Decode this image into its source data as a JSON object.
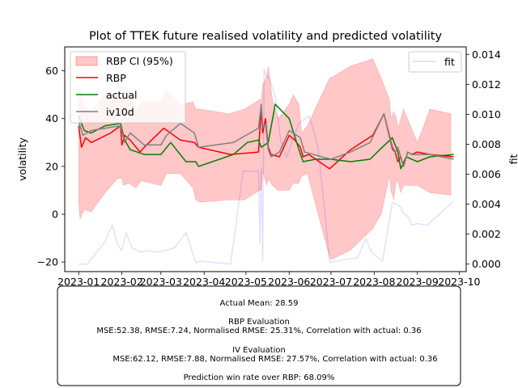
{
  "chart_data": {
    "type": "line",
    "title": "Plot of TTEK future realised volatility and predicted volatility",
    "ylabel": "volatility",
    "y2label": "fit",
    "ylim": [
      -24,
      70
    ],
    "y2lim": [
      -0.0005,
      0.0145
    ],
    "xlim": [
      "2022-12-22",
      "2023-10-06"
    ],
    "x_ticks": [
      "2023-01-01",
      "2023-02-01",
      "2023-03-01",
      "2023-04-01",
      "2023-05-01",
      "2023-06-01",
      "2023-07-01",
      "2023-08-01",
      "2023-09-01",
      "2023-10-01"
    ],
    "x_tick_labels": [
      "2023-01",
      "2023-02",
      "2023-03",
      "2023-04",
      "2023-05",
      "2023-06",
      "2023-07",
      "2023-08",
      "2023-09",
      "2023-10"
    ],
    "y_ticks": [
      -20,
      0,
      20,
      40,
      60
    ],
    "y2_ticks": [
      0.0,
      0.002,
      0.004,
      0.006,
      0.008,
      0.01,
      0.012,
      0.014
    ],
    "y2_tick_labels": [
      "0.000",
      "0.002",
      "0.004",
      "0.006",
      "0.008",
      "0.010",
      "0.012",
      "0.014"
    ],
    "legend_left_position": "upper-left",
    "legend_right_position": "upper-right",
    "grid": false,
    "series": [
      {
        "name": "RBP CI (95%)",
        "kind": "band",
        "color": "#ff0000",
        "alpha": 0.22,
        "x": [
          "2023-01-01",
          "2023-01-02",
          "2023-01-05",
          "2023-01-10",
          "2023-01-20",
          "2023-01-29",
          "2023-02-01",
          "2023-02-02",
          "2023-02-06",
          "2023-02-11",
          "2023-02-15",
          "2023-03-01",
          "2023-03-05",
          "2023-03-15",
          "2023-03-24",
          "2023-03-26",
          "2023-03-29",
          "2023-04-19",
          "2023-04-30",
          "2023-05-11",
          "2023-05-12",
          "2023-05-13",
          "2023-05-16",
          "2023-05-17",
          "2023-05-20",
          "2023-05-24",
          "2023-06-01",
          "2023-06-04",
          "2023-06-08",
          "2023-06-10",
          "2023-06-14",
          "2023-06-30",
          "2023-07-01",
          "2023-07-15",
          "2023-07-31",
          "2023-08-06",
          "2023-08-12",
          "2023-08-13",
          "2023-08-15",
          "2023-08-17",
          "2023-08-18",
          "2023-08-20",
          "2023-08-22",
          "2023-09-01",
          "2023-09-10",
          "2023-09-25"
        ],
        "upper": [
          48,
          52,
          45,
          43,
          50,
          50,
          49,
          54,
          52,
          43,
          47,
          47,
          52,
          46,
          47,
          44,
          44,
          42,
          44,
          48,
          48,
          54,
          58,
          62,
          48,
          40,
          46,
          50,
          46,
          34,
          37,
          57,
          57,
          62,
          65,
          57,
          48,
          40,
          43,
          40,
          36,
          40,
          44,
          30,
          44,
          42
        ],
        "lower": [
          5,
          -2,
          2,
          1,
          9,
          15,
          15,
          12,
          13,
          11,
          14,
          12,
          17,
          17,
          11,
          6,
          5,
          6,
          6,
          10,
          10,
          18,
          12,
          15,
          12,
          10,
          10,
          13,
          13,
          16,
          17,
          -18,
          -19,
          -15,
          -6,
          0,
          16,
          10,
          6,
          14,
          14,
          9,
          12,
          12,
          9,
          8
        ]
      },
      {
        "name": "RBP",
        "kind": "line",
        "color": "#ff0000",
        "x": [
          "2023-01-01",
          "2023-01-03",
          "2023-01-06",
          "2023-01-10",
          "2023-01-17",
          "2023-01-24",
          "2023-01-31",
          "2023-02-01",
          "2023-02-03",
          "2023-02-07",
          "2023-02-14",
          "2023-02-17",
          "2023-03-03",
          "2023-03-15",
          "2023-03-25",
          "2023-03-28",
          "2023-04-20",
          "2023-05-10",
          "2023-05-12",
          "2023-05-13",
          "2023-05-15",
          "2023-05-17",
          "2023-05-19",
          "2023-05-25",
          "2023-06-01",
          "2023-06-05",
          "2023-06-09",
          "2023-06-11",
          "2023-06-15",
          "2023-06-30",
          "2023-07-15",
          "2023-07-31",
          "2023-08-08",
          "2023-08-14",
          "2023-08-16",
          "2023-08-18",
          "2023-08-20",
          "2023-08-22",
          "2023-08-25",
          "2023-08-28",
          "2023-09-01",
          "2023-09-10",
          "2023-09-27"
        ],
        "values": [
          37,
          28,
          32,
          30,
          32,
          34,
          37,
          29,
          33,
          31,
          26,
          28,
          36,
          31,
          30,
          28,
          25,
          26,
          44,
          34,
          40,
          28,
          25,
          24,
          33,
          31,
          28,
          24,
          25,
          19,
          27,
          33,
          42,
          28,
          26,
          22,
          24,
          20,
          26,
          25,
          26,
          25,
          24
        ]
      },
      {
        "name": "actual",
        "kind": "line",
        "color": "#008000",
        "x": [
          "2023-01-01",
          "2023-01-05",
          "2023-01-10",
          "2023-01-20",
          "2023-01-31",
          "2023-02-03",
          "2023-02-07",
          "2023-02-17",
          "2023-03-01",
          "2023-03-08",
          "2023-03-19",
          "2023-03-26",
          "2023-03-28",
          "2023-04-22",
          "2023-05-02",
          "2023-05-10",
          "2023-05-12",
          "2023-05-17",
          "2023-05-22",
          "2023-06-01",
          "2023-06-08",
          "2023-06-11",
          "2023-06-20",
          "2023-07-01",
          "2023-07-15",
          "2023-07-29",
          "2023-08-05",
          "2023-08-14",
          "2023-08-18",
          "2023-08-20",
          "2023-08-24",
          "2023-09-01",
          "2023-09-10",
          "2023-09-27"
        ],
        "values": [
          41,
          35,
          34,
          37,
          38,
          31,
          27,
          25,
          25,
          30,
          22,
          22,
          20,
          25,
          30,
          31,
          28,
          30,
          46,
          40,
          27,
          22,
          23,
          23,
          22,
          23,
          27,
          32,
          26,
          19,
          24,
          22,
          24,
          25
        ]
      },
      {
        "name": "iv10d",
        "kind": "line",
        "color": "#808080",
        "x": [
          "2023-01-01",
          "2023-01-04",
          "2023-01-10",
          "2023-01-20",
          "2023-01-31",
          "2023-02-03",
          "2023-02-07",
          "2023-02-17",
          "2023-03-01",
          "2023-03-05",
          "2023-03-15",
          "2023-03-25",
          "2023-03-28",
          "2023-04-22",
          "2023-05-01",
          "2023-05-10",
          "2023-05-12",
          "2023-05-13",
          "2023-05-15",
          "2023-05-17",
          "2023-05-19",
          "2023-05-25",
          "2023-06-01",
          "2023-06-09",
          "2023-06-12",
          "2023-07-01",
          "2023-07-15",
          "2023-07-29",
          "2023-08-08",
          "2023-08-14",
          "2023-08-16",
          "2023-08-18",
          "2023-08-20",
          "2023-08-22",
          "2023-08-25",
          "2023-08-28",
          "2023-09-01",
          "2023-09-10",
          "2023-09-27"
        ],
        "values": [
          39,
          33,
          35,
          36,
          37,
          30,
          34,
          29,
          29,
          33,
          38,
          34,
          28,
          30,
          33,
          36,
          46,
          36,
          38,
          27,
          24,
          26,
          35,
          32,
          26,
          23,
          26,
          30,
          42,
          27,
          26,
          28,
          24,
          20,
          26,
          25,
          25,
          25,
          23
        ]
      },
      {
        "name": "fit",
        "kind": "line",
        "axis": "right",
        "color": "#0000ff",
        "alpha": 0.12,
        "x": [
          "2023-01-01",
          "2023-01-07",
          "2023-01-20",
          "2023-01-25",
          "2023-01-29",
          "2023-02-01",
          "2023-02-04",
          "2023-02-08",
          "2023-02-12",
          "2023-02-14",
          "2023-02-20",
          "2023-02-25",
          "2023-03-04",
          "2023-03-11",
          "2023-03-19",
          "2023-03-26",
          "2023-03-29",
          "2023-04-20",
          "2023-04-29",
          "2023-05-10",
          "2023-05-11",
          "2023-05-12",
          "2023-05-13",
          "2023-05-14",
          "2023-05-16",
          "2023-05-18",
          "2023-05-19",
          "2023-05-22",
          "2023-05-26",
          "2023-05-30",
          "2023-06-08",
          "2023-06-11",
          "2023-06-15",
          "2023-06-19",
          "2023-06-22",
          "2023-06-27",
          "2023-06-30",
          "2023-07-05",
          "2023-07-10",
          "2023-07-20",
          "2023-07-26",
          "2023-07-30",
          "2023-08-04",
          "2023-08-07",
          "2023-08-14",
          "2023-08-17",
          "2023-08-20",
          "2023-08-22",
          "2023-08-25",
          "2023-08-28",
          "2023-09-01",
          "2023-09-08",
          "2023-09-27"
        ],
        "values": [
          0.0,
          0.0,
          0.0015,
          0.0026,
          0.0013,
          0.0009,
          0.0021,
          0.0011,
          0.0009,
          0.0008,
          0.0009,
          0.0008,
          0.0009,
          0.0011,
          0.0021,
          0.0001,
          0.0002,
          0.0,
          0.0062,
          0.0062,
          0.0014,
          0.0064,
          0.0002,
          0.013,
          0.0125,
          0.0124,
          0.012,
          0.0112,
          0.0082,
          0.0071,
          0.0094,
          0.0096,
          0.0099,
          0.0088,
          0.0076,
          0.0031,
          0.0001,
          0.0002,
          0.0003,
          0.0004,
          0.0017,
          0.0008,
          0.0004,
          0.0002,
          0.0041,
          0.004,
          0.0038,
          0.0034,
          0.0032,
          0.0026,
          0.0027,
          0.0026,
          0.0042
        ]
      }
    ]
  },
  "info_box": {
    "lines": [
      "Actual Mean: 28.59",
      "",
      "RBP Evaluation",
      "MSE:52.38, RMSE:7.24, Normalised RMSE: 25.31%, Correlation with actual: 0.36",
      "",
      "IV Evaluation",
      "MSE:62.12, RMSE:7.88, Normalised RMSE: 27.57%, Correlation with actual: 0.36",
      "",
      "Prediction win rate over RBP: 68.09%"
    ]
  }
}
